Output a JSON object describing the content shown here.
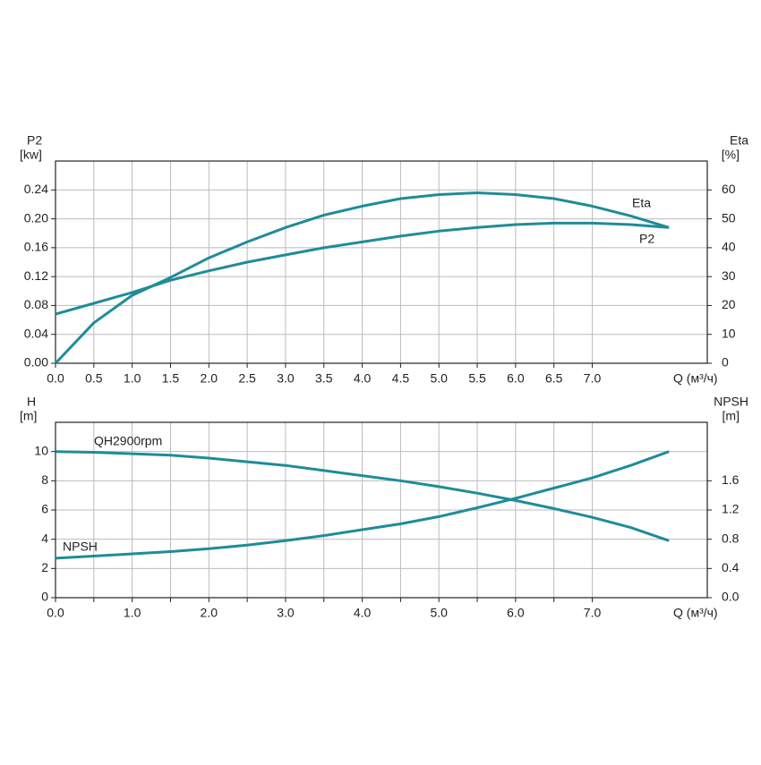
{
  "chart_data": [
    {
      "type": "line",
      "y_label": "P2",
      "y_unit": "[kw]",
      "y2_label": "Eta",
      "y2_unit": "[%]",
      "x_label": "Q (м³/ч)",
      "x": [
        0,
        0.5,
        1,
        1.5,
        2,
        2.5,
        3,
        3.5,
        4,
        4.5,
        5,
        5.5,
        6,
        6.5,
        7,
        7.5,
        8
      ],
      "series": [
        {
          "name": "Eta",
          "color": "#1f8c99",
          "axis": "y2",
          "values": [
            0,
            14,
            23.5,
            29.7,
            36.5,
            42,
            47,
            51.3,
            54.4,
            57,
            58.4,
            59,
            58.4,
            57,
            54.4,
            51,
            47
          ]
        },
        {
          "name": "P2",
          "color": "#1f8c99",
          "values": [
            0.068,
            0.083,
            0.098,
            0.115,
            0.128,
            0.14,
            0.15,
            0.16,
            0.168,
            0.176,
            0.183,
            0.188,
            0.192,
            0.194,
            0.194,
            0.192,
            0.188
          ]
        }
      ],
      "xlim": [
        0,
        8.5
      ],
      "xticks": [
        {
          "value": 0,
          "label": "0.0"
        },
        0.5,
        {
          "value": 1,
          "label": "1.0"
        },
        1.5,
        {
          "value": 2,
          "label": "2.0"
        },
        2.5,
        {
          "value": 3,
          "label": "3.0"
        },
        3.5,
        {
          "value": 4,
          "label": "4.0"
        },
        4.5,
        {
          "value": 5,
          "label": "5.0"
        },
        5.5,
        {
          "value": 6,
          "label": "6.0"
        },
        6.5,
        {
          "value": 7,
          "label": "7.0"
        }
      ],
      "ylim": [
        0,
        0.28
      ],
      "yticks": [
        {
          "value": 0,
          "label": "0.00"
        },
        0.04,
        0.08,
        0.12,
        0.16,
        {
          "value": 0.2,
          "label": "0.20"
        },
        0.24
      ],
      "y2lim": [
        0,
        70
      ],
      "y2ticks": [
        0,
        10,
        20,
        30,
        40,
        50,
        60
      ],
      "grid": true
    },
    {
      "type": "line",
      "y_label": "H",
      "y_unit": "[m]",
      "y2_label": "NPSH",
      "y2_unit": "[m]",
      "x_label": "Q (м³/ч)",
      "x": [
        0,
        0.5,
        1,
        1.5,
        2,
        2.5,
        3,
        3.5,
        4,
        4.5,
        5,
        5.5,
        6,
        6.5,
        7,
        7.5,
        8
      ],
      "series": [
        {
          "name": "QH2900rpm",
          "color": "#1f8c99",
          "values": [
            10,
            9.95,
            9.85,
            9.75,
            9.55,
            9.3,
            9.05,
            8.7,
            8.35,
            8,
            7.6,
            7.15,
            6.65,
            6.1,
            5.5,
            4.8,
            3.9
          ]
        },
        {
          "name": "NPSH",
          "color": "#1f8c99",
          "axis": "y2",
          "values": [
            0.54,
            0.57,
            0.6,
            0.63,
            0.67,
            0.72,
            0.78,
            0.85,
            0.93,
            1.01,
            1.11,
            1.23,
            1.36,
            1.5,
            1.64,
            1.81,
            2
          ]
        }
      ],
      "xlim": [
        0,
        8.5
      ],
      "xticks": [
        {
          "value": 0,
          "label": "0.0"
        },
        0.5,
        {
          "value": 1,
          "label": "1.0"
        },
        1.5,
        {
          "value": 2,
          "label": "2.0"
        },
        2.5,
        {
          "value": 3,
          "label": "3.0"
        },
        3.5,
        {
          "value": 4,
          "label": "4.0"
        },
        4.5,
        {
          "value": 5,
          "label": "5.0"
        },
        5.5,
        {
          "value": 6,
          "label": "6.0"
        },
        6.5,
        {
          "value": 7,
          "label": "7.0"
        }
      ],
      "labeled_xticks_only_integers": true,
      "ylim": [
        0,
        12
      ],
      "yticks": [
        0,
        2,
        4,
        6,
        8,
        10
      ],
      "y2lim": [
        0,
        2.4
      ],
      "y2ticks": [
        {
          "value": 0,
          "label": "0.0"
        },
        0.4,
        0.8,
        1.2,
        1.6
      ],
      "grid": true
    }
  ]
}
